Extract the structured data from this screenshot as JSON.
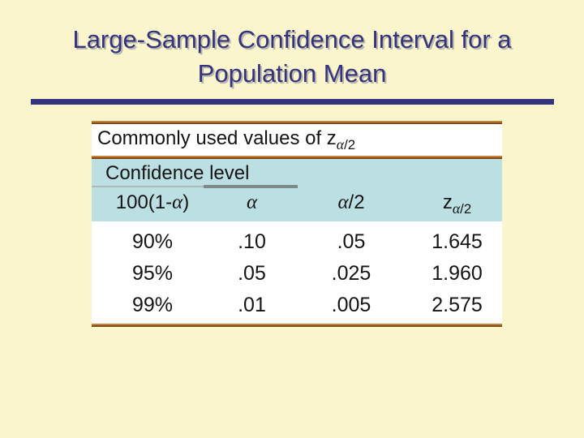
{
  "slide": {
    "title_line1": "Large-Sample Confidence Interval for a",
    "title_line2": "Population Mean"
  },
  "table": {
    "caption": {
      "prefix": "Commonly used values of z",
      "sub_alpha": "α",
      "sub_rest": "/2"
    },
    "section_header": "Confidence level",
    "columns": {
      "col1": {
        "prefix": "100(1-",
        "alpha": "α",
        "suffix": ")"
      },
      "col2": {
        "alpha": "α"
      },
      "col3": {
        "alpha": "α",
        "suffix": "/2"
      },
      "col4": {
        "base": "z",
        "sub_alpha": "α",
        "sub_rest": "/2"
      }
    },
    "rows": [
      [
        "90%",
        ".10",
        ".05",
        "1.645"
      ],
      [
        "95%",
        ".05",
        ".025",
        "1.960"
      ],
      [
        "99%",
        ".01",
        ".005",
        "2.575"
      ]
    ]
  },
  "chart_data": {
    "type": "table",
    "title": "Commonly used values of z(alpha/2)",
    "columns": [
      "100(1-alpha)",
      "alpha",
      "alpha/2",
      "z(alpha/2)"
    ],
    "rows": [
      [
        "90%",
        0.1,
        0.05,
        1.645
      ],
      [
        "95%",
        0.05,
        0.025,
        1.96
      ],
      [
        "99%",
        0.01,
        0.005,
        2.575
      ]
    ]
  },
  "colors": {
    "bg": "#FAF5CC",
    "navy": "#34347E",
    "orange-light": "#C5803A",
    "orange-dark": "#824912",
    "blue": "#BCDFE3",
    "gray-thin": "#AEBABA",
    "gray-thick": "#7D8989"
  }
}
